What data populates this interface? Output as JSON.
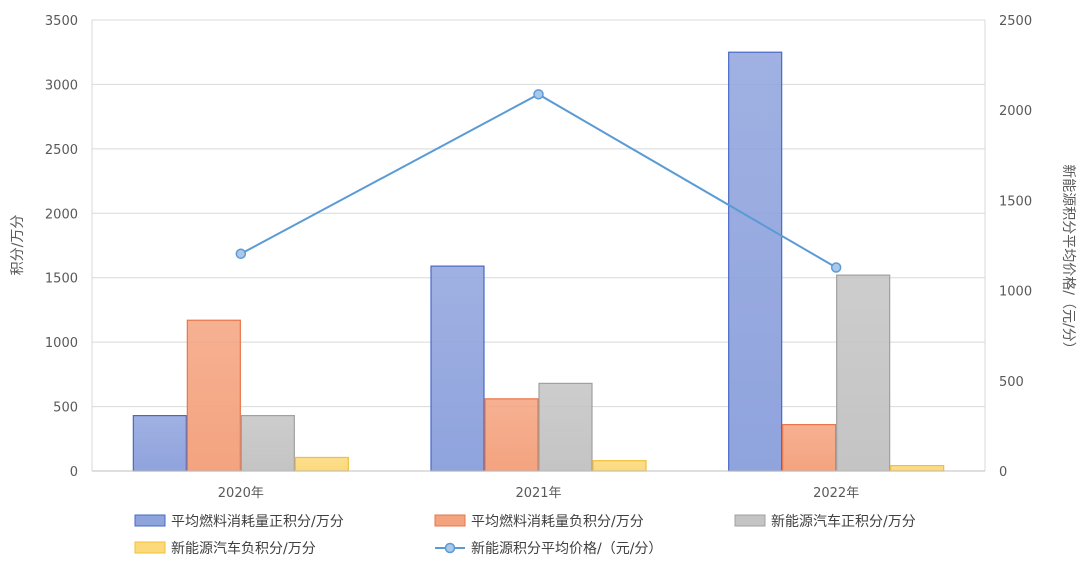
{
  "chart_data": {
    "type": "bar",
    "categories": [
      "2020年",
      "2021年",
      "2022年"
    ],
    "y_left": {
      "label": "积分/万分",
      "min": 0,
      "max": 3500,
      "ticks": [
        0,
        500,
        1000,
        1500,
        2000,
        2500,
        3000,
        3500
      ]
    },
    "y_right": {
      "label": "新能源积分平均价格/（元/分）",
      "min": 0,
      "max": 2500,
      "ticks": [
        0,
        500,
        1000,
        1500,
        2000,
        2500
      ]
    },
    "grid": true,
    "legend_position": "bottom",
    "series": [
      {
        "name": "平均燃料消耗量正积分/万分",
        "kind": "bar",
        "axis": "left",
        "color": "#8fa3dd",
        "border": "#4a69c6",
        "values": [
          430,
          1590,
          3250
        ]
      },
      {
        "name": "平均燃料消耗量负积分/万分",
        "kind": "bar",
        "axis": "left",
        "color": "#f4a37f",
        "border": "#e8764a",
        "values": [
          1170,
          560,
          360
        ]
      },
      {
        "name": "新能源汽车正积分/万分",
        "kind": "bar",
        "axis": "left",
        "color": "#c4c4c4",
        "border": "#a0a0a0",
        "values": [
          430,
          680,
          1520
        ]
      },
      {
        "name": "新能源汽车负积分/万分",
        "kind": "bar",
        "axis": "left",
        "color": "#fcd97a",
        "border": "#f2bf36",
        "values": [
          105,
          80,
          42
        ]
      },
      {
        "name": "新能源积分平均价格/（元/分）",
        "kind": "line",
        "axis": "right",
        "color": "#5b9bd5",
        "values": [
          1204,
          2088,
          1128
        ]
      }
    ]
  }
}
